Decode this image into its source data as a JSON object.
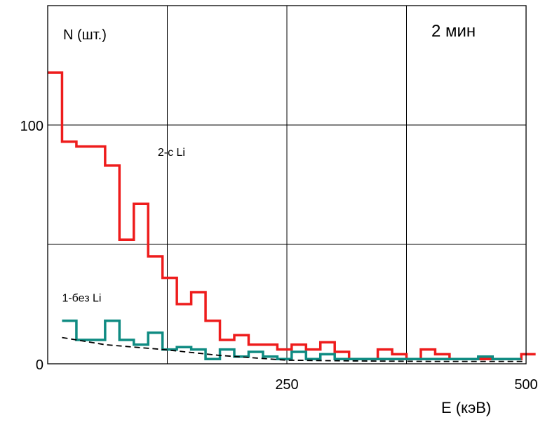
{
  "chart_data": {
    "type": "line",
    "title": "2 мин",
    "ylabel": "N (шт.)",
    "xlabel": "E (кэВ)",
    "xlim": [
      0,
      500
    ],
    "ylim": [
      0,
      150
    ],
    "x_ticks": [
      {
        "value": 250,
        "label": "250"
      },
      {
        "value": 500,
        "label": "500"
      }
    ],
    "y_ticks": [
      {
        "value": 0,
        "label": "0"
      },
      {
        "value": 100,
        "label": "100"
      }
    ],
    "grid": true,
    "series": [
      {
        "name": "2-с Li",
        "color": "#ee1c1c",
        "style": "step",
        "label_anchor": [
          115,
          87
        ],
        "x": [
          0,
          15,
          30,
          60,
          75,
          90,
          105,
          120,
          135,
          150,
          165,
          180,
          195,
          210,
          225,
          240,
          255,
          270,
          285,
          300,
          315,
          330,
          345,
          360,
          375,
          390,
          405,
          420,
          435,
          450,
          465,
          480,
          495
        ],
        "values": [
          122,
          93,
          91,
          83,
          52,
          67,
          45,
          36,
          25,
          30,
          18,
          10,
          12,
          8,
          8,
          6,
          8,
          6,
          9,
          5,
          2,
          2,
          6,
          4,
          2,
          6,
          4,
          2,
          2,
          2,
          2,
          2,
          4
        ]
      },
      {
        "name": "1-без Li",
        "color": "#0f8b82",
        "style": "step",
        "label_anchor": [
          15,
          26
        ],
        "x": [
          15,
          30,
          45,
          60,
          75,
          90,
          105,
          120,
          135,
          150,
          165,
          180,
          195,
          210,
          225,
          240,
          255,
          270,
          285,
          300,
          315,
          330,
          345,
          360,
          375,
          390,
          405,
          420,
          435,
          450,
          465,
          480
        ],
        "values": [
          18,
          10,
          10,
          18,
          10,
          8,
          13,
          6,
          7,
          6,
          2,
          6,
          3,
          5,
          3,
          2,
          5,
          2,
          4,
          2,
          2,
          2,
          2,
          2,
          2,
          2,
          2,
          2,
          2,
          3,
          2,
          2
        ]
      },
      {
        "name": "",
        "color": "#000000",
        "style": "dashed",
        "x": [
          15,
          60,
          120,
          180,
          250,
          320,
          400,
          500
        ],
        "values": [
          11,
          8,
          6,
          3.5,
          1.5,
          1.2,
          1,
          1
        ]
      }
    ]
  }
}
